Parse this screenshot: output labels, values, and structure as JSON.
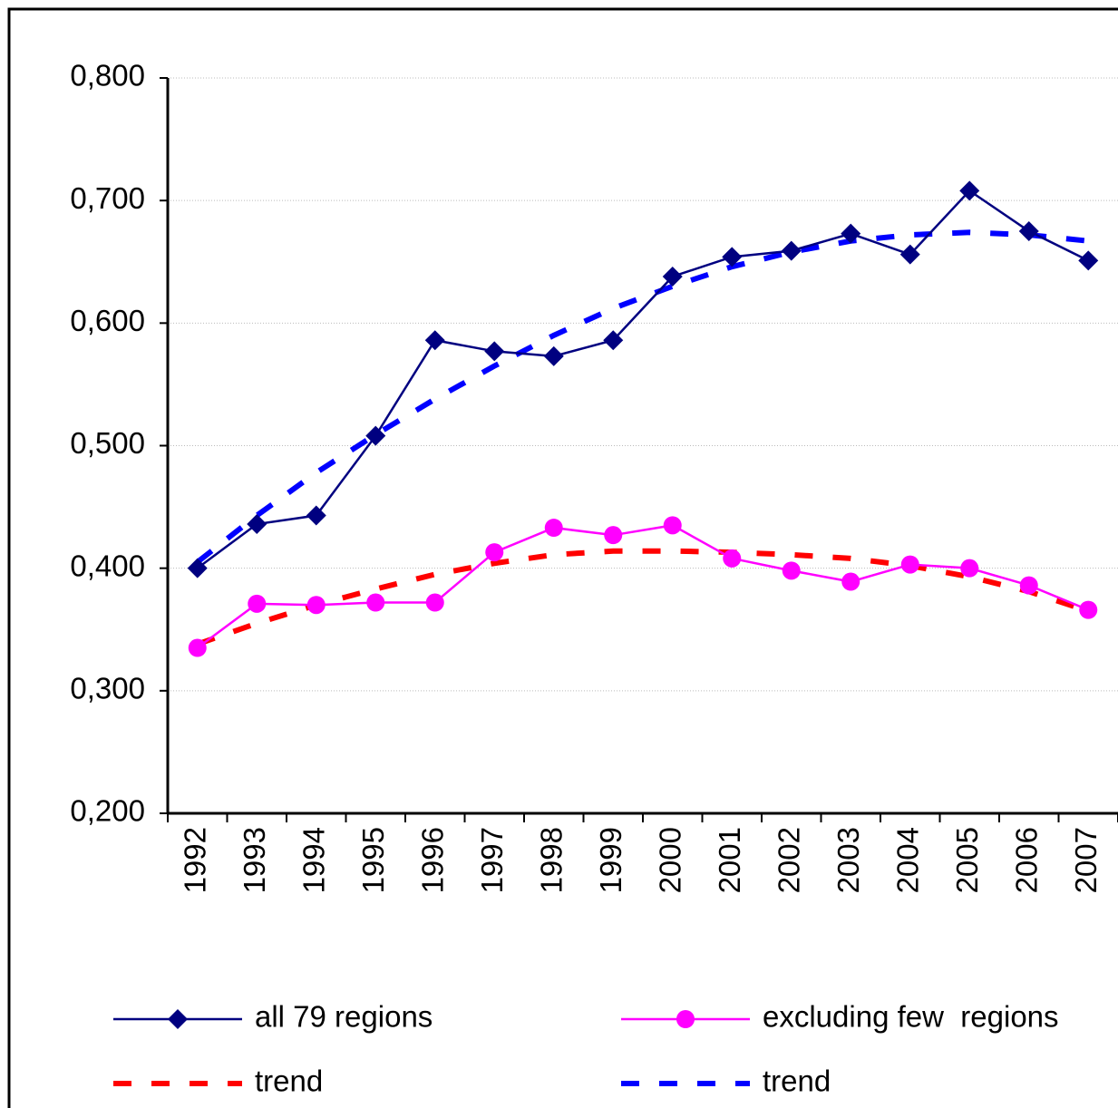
{
  "chart_data": {
    "type": "line",
    "categories": [
      "1992",
      "1993",
      "1994",
      "1995",
      "1996",
      "1997",
      "1998",
      "1999",
      "2000",
      "2001",
      "2002",
      "2003",
      "2004",
      "2005",
      "2006",
      "2007"
    ],
    "series": [
      {
        "name": "all 79 regions",
        "color": "#000080",
        "marker": "diamond",
        "dashed": false,
        "values": [
          0.4,
          0.436,
          0.443,
          0.508,
          0.586,
          0.577,
          0.573,
          0.586,
          0.638,
          0.654,
          0.659,
          0.673,
          0.656,
          0.708,
          0.675,
          0.651
        ]
      },
      {
        "name": "excluding few  regions",
        "color": "#ff00ff",
        "marker": "circle",
        "dashed": false,
        "values": [
          0.335,
          0.371,
          0.37,
          0.372,
          0.372,
          0.413,
          0.433,
          0.427,
          0.435,
          0.408,
          0.398,
          0.389,
          0.403,
          0.4,
          0.386,
          0.366
        ]
      },
      {
        "name": "trend",
        "color": "#ff0000",
        "marker": "none",
        "dashed": true,
        "values": [
          0.338,
          0.355,
          0.37,
          0.383,
          0.395,
          0.404,
          0.411,
          0.414,
          0.414,
          0.413,
          0.411,
          0.408,
          0.402,
          0.393,
          0.381,
          0.365
        ]
      },
      {
        "name": "trend",
        "color": "#0000ff",
        "marker": "none",
        "dashed": true,
        "values": [
          0.405,
          0.443,
          0.478,
          0.509,
          0.538,
          0.565,
          0.59,
          0.612,
          0.63,
          0.646,
          0.658,
          0.667,
          0.672,
          0.674,
          0.672,
          0.667
        ]
      }
    ],
    "ylim": [
      0.2,
      0.8
    ],
    "yticks": [
      {
        "value": 0.2,
        "label": "0,200"
      },
      {
        "value": 0.3,
        "label": "0,300"
      },
      {
        "value": 0.4,
        "label": "0,400"
      },
      {
        "value": 0.5,
        "label": "0,500"
      },
      {
        "value": 0.6,
        "label": "0,600"
      },
      {
        "value": 0.7,
        "label": "0,700"
      },
      {
        "value": 0.8,
        "label": "0,800"
      }
    ],
    "grid": true,
    "legend": "bottom"
  }
}
